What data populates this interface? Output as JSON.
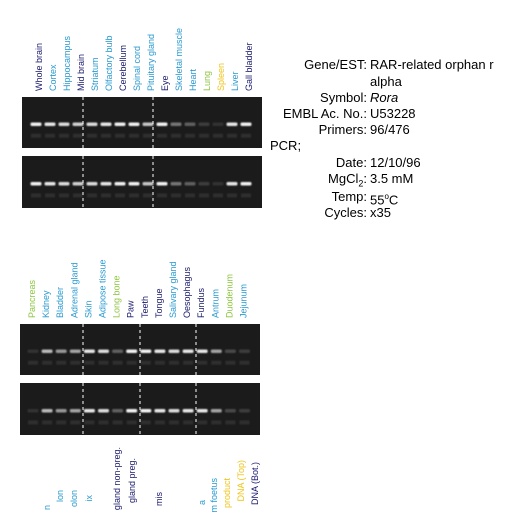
{
  "top_panel": {
    "lanes": [
      {
        "label": "Whole brain",
        "color": "#1a1a6e"
      },
      {
        "label": "Cortex",
        "color": "#2a9ad0"
      },
      {
        "label": "Hippocampus",
        "color": "#2a9ad0"
      },
      {
        "label": "Mid brain",
        "color": "#1a1a6e"
      },
      {
        "label": "Striatum",
        "color": "#2a9ad0"
      },
      {
        "label": "Olfactory bulb",
        "color": "#2a9ad0"
      },
      {
        "label": "Cerebellum",
        "color": "#1a1a6e"
      },
      {
        "label": "Spinal cord",
        "color": "#2a9ad0"
      },
      {
        "label": "Pituitary gland",
        "color": "#2a9ad0"
      },
      {
        "label": "Eye",
        "color": "#1a1a6e"
      },
      {
        "label": "Skeletal muscle",
        "color": "#2a9ad0"
      },
      {
        "label": "Heart",
        "color": "#2a9ad0"
      },
      {
        "label": "Lung",
        "color": "#8cc63f"
      },
      {
        "label": "Spleen",
        "color": "#f0c419"
      },
      {
        "label": "Liver",
        "color": "#2a9ad0"
      },
      {
        "label": "Gall bladder",
        "color": "#1a1a6e"
      }
    ]
  },
  "bottom_panel": {
    "lanes": [
      {
        "label": "Pancreas",
        "color": "#8cc63f"
      },
      {
        "label": "Kidney",
        "color": "#2a9ad0"
      },
      {
        "label": "Bladder",
        "color": "#2a9ad0"
      },
      {
        "label": "Adrenal gland",
        "color": "#2a9ad0"
      },
      {
        "label": "Skin",
        "color": "#2a9ad0"
      },
      {
        "label": "Adipose tissue",
        "color": "#2a9ad0"
      },
      {
        "label": "Long bone",
        "color": "#8cc63f"
      },
      {
        "label": "Paw",
        "color": "#1a1a6e"
      },
      {
        "label": "Teeth",
        "color": "#1a1a6e"
      },
      {
        "label": "Tongue",
        "color": "#1a1a6e"
      },
      {
        "label": "Salivary gland",
        "color": "#2a9ad0"
      },
      {
        "label": "Oesophagus",
        "color": "#1a1a6e"
      },
      {
        "label": "Fundus",
        "color": "#1a1a6e"
      },
      {
        "label": "Antrum",
        "color": "#2a9ad0"
      },
      {
        "label": "Duodenum",
        "color": "#8cc63f"
      },
      {
        "label": "Jejunum",
        "color": "#2a9ad0"
      }
    ]
  },
  "third_panel": {
    "lanes": [
      {
        "label": "n",
        "color": "#2a9ad0"
      },
      {
        "label": "lon",
        "color": "#2a9ad0"
      },
      {
        "label": "olon",
        "color": "#2a9ad0"
      },
      {
        "label": "ix",
        "color": "#2a9ad0"
      },
      {
        "label": "gland non-preg.",
        "color": "#1a1a6e"
      },
      {
        "label": "gland preg.",
        "color": "#1a1a6e"
      },
      {
        "label": "mis",
        "color": "#1a1a6e"
      },
      {
        "label": "a",
        "color": "#2a9ad0"
      },
      {
        "label": "m foetus",
        "color": "#2a9ad0"
      },
      {
        "label": "product",
        "color": "#f0c419"
      },
      {
        "label": "DNA (Top)",
        "color": "#f0c419"
      },
      {
        "label": "DNA (Bot.)",
        "color": "#1a1a6e"
      }
    ]
  },
  "info": {
    "gene_label": "Gene/EST:",
    "gene_lines": [
      "RAR-related orphan r",
      "alpha"
    ],
    "symbol_label": "Symbol:",
    "symbol": "Rora",
    "embl_label": "EMBL Ac. No.:",
    "embl": "U53228",
    "primers_label": "Primers:",
    "primers": "96/476",
    "pcr_label": "PCR;",
    "date_label": "Date:",
    "date": "12/10/96",
    "mgcl_label": "MgCl",
    "mgcl_sub": "2",
    "colon": ":",
    "mgcl": "3.5 mM",
    "temp_label": "Temp:",
    "temp": "55",
    "temp_sup": "o",
    "temp_unit": "C",
    "cycles_label": "Cycles:",
    "cycles": "x35"
  }
}
